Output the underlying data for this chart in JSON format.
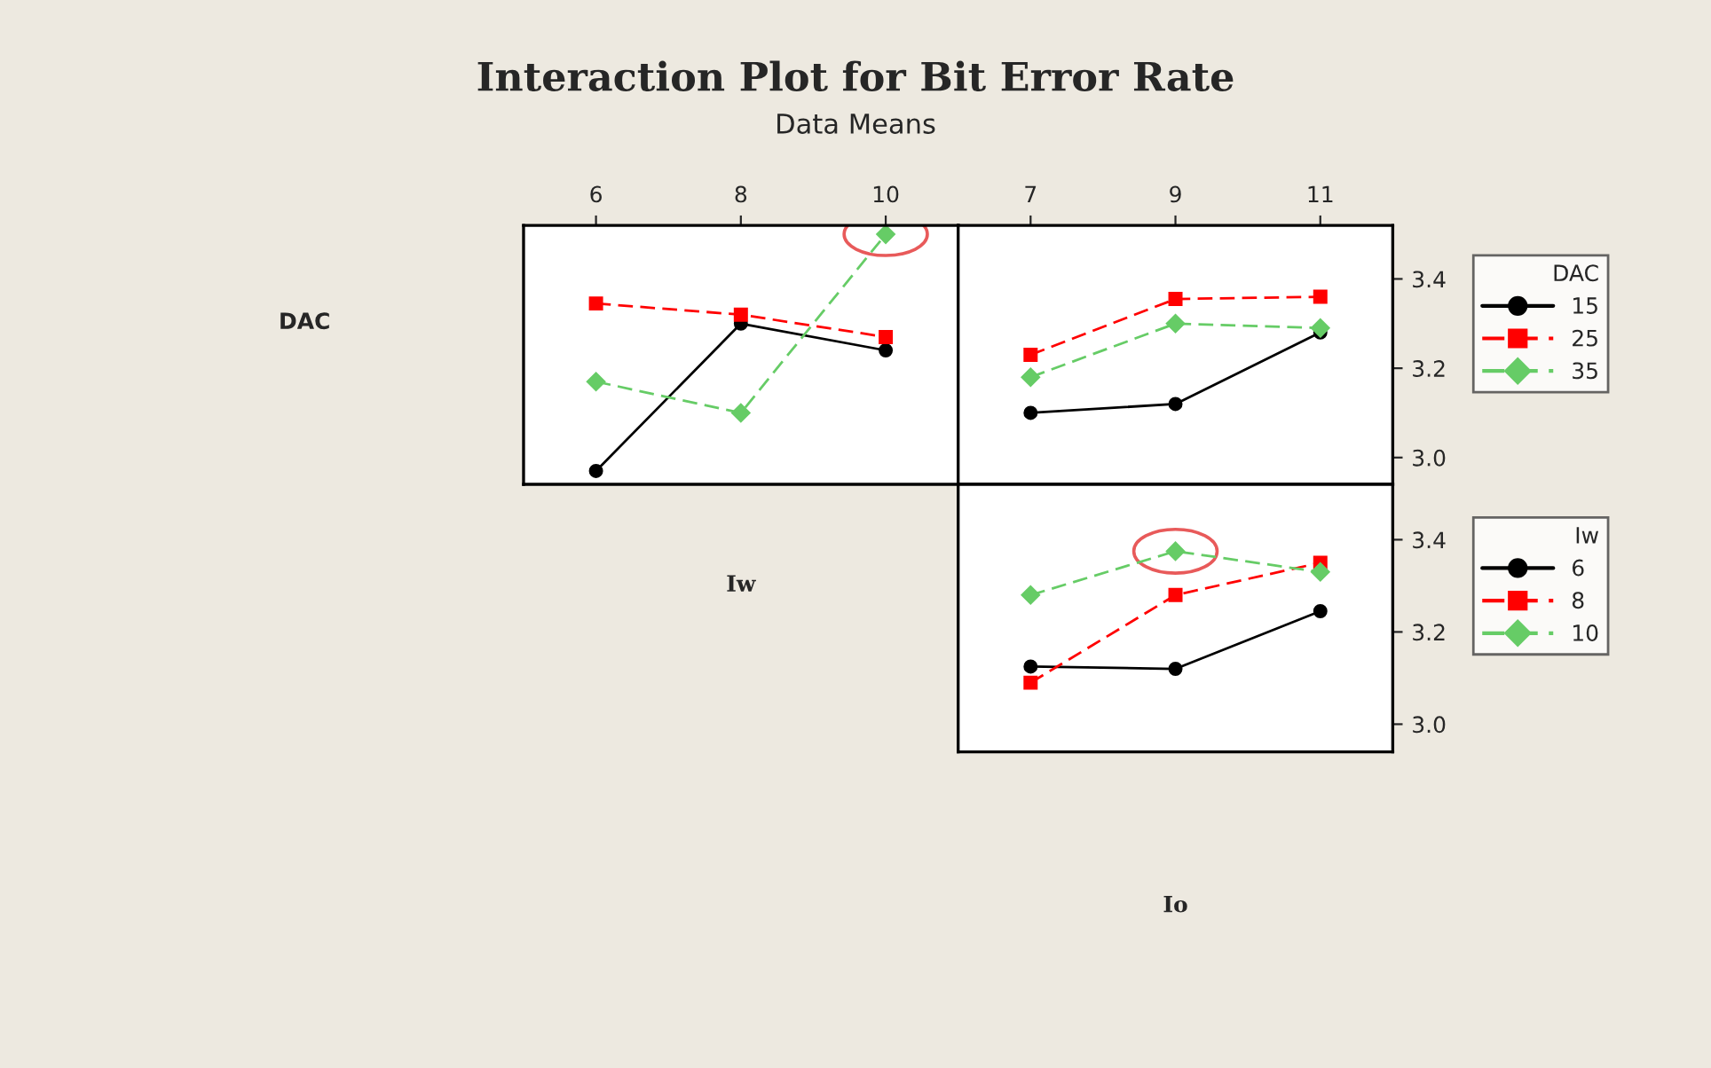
{
  "chart_data": [
    {
      "type": "line",
      "title": "Interaction Plot for Bit Error Rate",
      "subtitle": "Data Means",
      "ylabel": "DAC",
      "x": [
        6,
        8,
        10
      ],
      "xlim": [
        5,
        11
      ],
      "xticks": [
        6,
        8,
        10
      ],
      "ylim": [
        2.94,
        3.52
      ],
      "yticks": [
        3.0,
        3.2,
        3.4
      ],
      "tick_labels": "x",
      "grid": false,
      "series": [
        {
          "color": "#000000",
          "marker": "circle",
          "line_style": "solid",
          "values": [
            2.97,
            3.3,
            3.24
          ]
        },
        {
          "color": "#ff0000",
          "marker": "square",
          "line_style": "dashed",
          "values": [
            3.345,
            3.32,
            3.27
          ]
        },
        {
          "color": "#66cc66",
          "marker": "diamond",
          "line_style": "dashed",
          "values": [
            3.17,
            3.1,
            3.5
          ]
        }
      ]
    },
    {
      "type": "line",
      "legend_title": "DAC",
      "x": [
        7,
        9,
        11
      ],
      "xlim": [
        6,
        12
      ],
      "xticks": [
        7,
        9,
        11
      ],
      "ylim": [
        2.94,
        3.52
      ],
      "yticks": [
        {
          "value": 3.0,
          "label": "3.0"
        },
        3.2,
        3.4
      ],
      "legend": "right",
      "grid": false,
      "series": [
        {
          "name": "15",
          "color": "#000000",
          "marker": "circle",
          "line_style": "solid",
          "values": [
            3.1,
            3.12,
            3.28
          ]
        },
        {
          "name": "25",
          "color": "#ff0000",
          "marker": "square",
          "line_style": "dashed",
          "values": [
            3.23,
            3.355,
            3.36
          ]
        },
        {
          "name": "35",
          "color": "#66cc66",
          "marker": "diamond",
          "line_style": "dashed",
          "values": [
            3.18,
            3.3,
            3.29
          ]
        }
      ]
    },
    {
      "type": "line",
      "legend_title": "Iw",
      "ylabel": "Iw",
      "xlabel": "Io",
      "x": [
        7,
        9,
        11
      ],
      "xlim": [
        6,
        12
      ],
      "xticks": [
        7,
        9,
        11
      ],
      "ylim": [
        2.94,
        3.52
      ],
      "yticks": [
        {
          "value": 3.0,
          "label": "3.0"
        },
        3.2,
        3.4
      ],
      "tick_labels": "y",
      "legend": "right",
      "grid": false,
      "series": [
        {
          "name": "6",
          "color": "#000000",
          "marker": "circle",
          "line_style": "solid",
          "values": [
            3.125,
            3.12,
            3.245
          ]
        },
        {
          "name": "8",
          "color": "#ff0000",
          "marker": "square",
          "line_style": "dashed",
          "values": [
            3.09,
            3.28,
            3.35
          ]
        },
        {
          "name": "10",
          "color": "#66cc66",
          "marker": "diamond",
          "line_style": "dashed",
          "values": [
            3.28,
            3.375,
            3.33
          ]
        }
      ]
    }
  ]
}
